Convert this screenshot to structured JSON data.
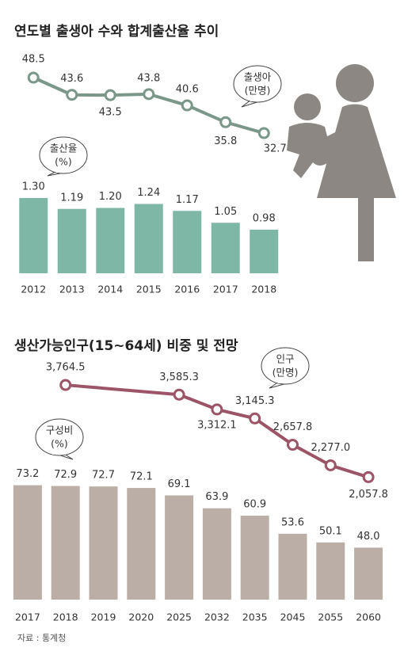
{
  "chart_data": [
    {
      "type": "bar_line",
      "title": "연도별 출생아 수와 합계출산율 추이",
      "categories": [
        "2012",
        "2013",
        "2014",
        "2015",
        "2016",
        "2017",
        "2018"
      ],
      "series": [
        {
          "name": "출산율",
          "unit": "(%)",
          "type": "bar",
          "color": "#7fb7a7",
          "values": [
            1.3,
            1.19,
            1.2,
            1.24,
            1.17,
            1.05,
            0.98
          ],
          "value_labels": [
            "1.30",
            "1.19",
            "1.20",
            "1.24",
            "1.17",
            "1.05",
            "0.98"
          ]
        },
        {
          "name": "출생아",
          "unit": "(만명)",
          "type": "line",
          "axis": "y2",
          "color": "#7b978a",
          "values": [
            48.5,
            43.6,
            43.5,
            43.8,
            40.6,
            35.8,
            32.7
          ]
        }
      ],
      "ylim": [
        0.54,
        1.4
      ],
      "y2lim": [
        30,
        52
      ]
    },
    {
      "type": "bar_line",
      "title": "생산가능인구(15~64세) 비중 및 전망",
      "categories": [
        "2017",
        "2018",
        "2019",
        "2020",
        "2025",
        "2032",
        "2035",
        "2045",
        "2055",
        "2060"
      ],
      "series": [
        {
          "name": "구성비",
          "unit": "(%)",
          "type": "bar",
          "color": "#bbaea6",
          "values": [
            73.2,
            72.9,
            72.7,
            72.1,
            69.1,
            63.9,
            60.9,
            53.6,
            50.1,
            48.0
          ],
          "value_labels": [
            "73.2",
            "72.9",
            "72.7",
            "72.1",
            "69.1",
            "63.9",
            "60.9",
            "53.6",
            "50.1",
            "48.0"
          ]
        },
        {
          "name": "인구",
          "unit": "(만명)",
          "type": "line",
          "axis": "y2",
          "color": "#9c5467",
          "x": [
            "2018",
            "2025",
            "2032",
            "2035",
            "2045",
            "2055",
            "2060"
          ],
          "values": [
            3764.5,
            3585.3,
            3312.1,
            3145.3,
            2657.8,
            2277.0,
            2057.8
          ],
          "value_labels": [
            "3,764.5",
            "3,585.3",
            "3,312.1",
            "3,145.3",
            "2,657.8",
            "2,277.0",
            "2,057.8"
          ]
        }
      ],
      "ylim": [
        27,
        75
      ],
      "y2lim": [
        1800,
        4000
      ]
    }
  ],
  "source": "자료 : 통계청"
}
